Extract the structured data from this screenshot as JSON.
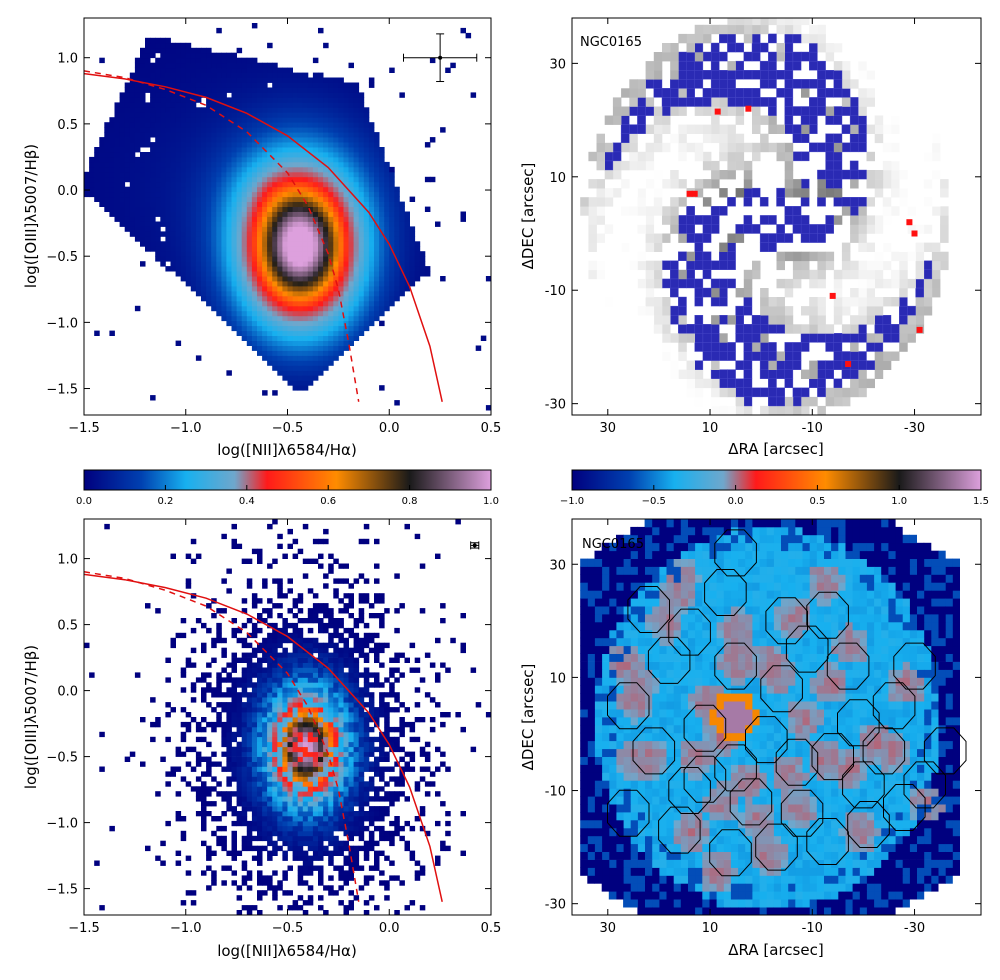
{
  "chart_data": [
    {
      "type": "heatmap",
      "panel": "top-left",
      "xlabel": "log([NII]λ6584/Hα)",
      "ylabel": "log([OIII]λ5007/Hβ)",
      "xlim": [
        -1.5,
        0.5
      ],
      "ylim": [
        -1.7,
        1.3
      ],
      "xticks": [
        "−1.5",
        "−1.0",
        "−0.5",
        "0.0",
        "0.5"
      ],
      "yticks": [
        "−1.5",
        "−1.0",
        "−0.5",
        "0.0",
        "0.5",
        "1.0"
      ],
      "density_peak": {
        "x": -0.45,
        "y": -0.45
      },
      "error_bar": {
        "x": 0.25,
        "y": 1.0,
        "xerr": 0.18,
        "yerr": 0.18
      },
      "curves": [
        {
          "style": "solid",
          "color": "#e01010",
          "points": [
            [
              -1.5,
              0.88
            ],
            [
              -1.3,
              0.84
            ],
            [
              -1.1,
              0.78
            ],
            [
              -0.9,
              0.7
            ],
            [
              -0.7,
              0.58
            ],
            [
              -0.5,
              0.41
            ],
            [
              -0.3,
              0.17
            ],
            [
              -0.1,
              -0.17
            ],
            [
              0.0,
              -0.41
            ],
            [
              0.1,
              -0.73
            ],
            [
              0.2,
              -1.18
            ],
            [
              0.26,
              -1.6
            ]
          ]
        },
        {
          "style": "dashed",
          "color": "#e01010",
          "points": [
            [
              -1.5,
              0.9
            ],
            [
              -1.3,
              0.85
            ],
            [
              -1.1,
              0.76
            ],
            [
              -0.9,
              0.64
            ],
            [
              -0.7,
              0.44
            ],
            [
              -0.5,
              0.13
            ],
            [
              -0.4,
              -0.12
            ],
            [
              -0.3,
              -0.48
            ],
            [
              -0.25,
              -0.75
            ],
            [
              -0.2,
              -1.15
            ],
            [
              -0.15,
              -1.6
            ]
          ]
        }
      ],
      "colorbar": {
        "min": 0.0,
        "max": 1.0,
        "ticks": [
          "0.0",
          "0.2",
          "0.4",
          "0.6",
          "0.8",
          "1.0"
        ]
      }
    },
    {
      "type": "heatmap",
      "panel": "top-right",
      "label": "NGC0165",
      "xlabel": "ΔRA [arcsec]",
      "ylabel": "ΔDEC [arcsec]",
      "xlim": [
        37,
        -43
      ],
      "ylim": [
        -32,
        38
      ],
      "xticks": [
        "30",
        "10",
        "-10",
        "-30"
      ],
      "yticks": [
        "30",
        "10",
        "-10",
        "-30"
      ],
      "grayscale_map": true,
      "overlay_color": "#2a2ab4",
      "red_markers": [
        [
          8.5,
          21.5
        ],
        [
          2.5,
          22
        ],
        [
          13,
          7
        ],
        [
          14,
          7
        ],
        [
          -29,
          2
        ],
        [
          -30,
          0
        ],
        [
          -14,
          -11
        ],
        [
          -17,
          -23
        ],
        [
          -31,
          -17
        ]
      ]
    },
    {
      "type": "heatmap",
      "panel": "bottom-left",
      "xlabel": "log([NII]λ6584/Hα)",
      "ylabel": "log([OIII]λ5007/Hβ)",
      "xlim": [
        -1.5,
        0.5
      ],
      "ylim": [
        -1.7,
        1.3
      ],
      "xticks": [
        "−1.5",
        "−1.0",
        "−0.5",
        "0.0",
        "0.5"
      ],
      "yticks": [
        "−1.5",
        "−1.0",
        "−0.5",
        "0.0",
        "0.5",
        "1.0"
      ],
      "density_peak": {
        "x": -0.42,
        "y": -0.45
      },
      "error_bar": {
        "x": 0.42,
        "y": 1.1,
        "xerr": 0.02,
        "yerr": 0.02
      },
      "curves": [
        {
          "style": "solid",
          "color": "#e01010",
          "points": [
            [
              -1.5,
              0.88
            ],
            [
              -1.3,
              0.84
            ],
            [
              -1.1,
              0.78
            ],
            [
              -0.9,
              0.7
            ],
            [
              -0.7,
              0.58
            ],
            [
              -0.5,
              0.41
            ],
            [
              -0.3,
              0.17
            ],
            [
              -0.1,
              -0.17
            ],
            [
              0.0,
              -0.41
            ],
            [
              0.1,
              -0.73
            ],
            [
              0.2,
              -1.18
            ],
            [
              0.26,
              -1.6
            ]
          ]
        },
        {
          "style": "dashed",
          "color": "#e01010",
          "points": [
            [
              -1.5,
              0.9
            ],
            [
              -1.3,
              0.85
            ],
            [
              -1.1,
              0.76
            ],
            [
              -0.9,
              0.64
            ],
            [
              -0.7,
              0.44
            ],
            [
              -0.5,
              0.13
            ],
            [
              -0.4,
              -0.12
            ],
            [
              -0.3,
              -0.48
            ],
            [
              -0.25,
              -0.75
            ],
            [
              -0.2,
              -1.15
            ],
            [
              -0.15,
              -1.6
            ]
          ]
        }
      ]
    },
    {
      "type": "heatmap",
      "panel": "bottom-right",
      "label": "NGC0165",
      "xlabel": "ΔRA [arcsec]",
      "ylabel": "ΔDEC [arcsec]",
      "xlim": [
        37,
        -43
      ],
      "ylim": [
        -32,
        38
      ],
      "xticks": [
        "30",
        "10",
        "-10",
        "-30"
      ],
      "yticks": [
        "30",
        "10",
        "-10",
        "-30"
      ],
      "colorbar": {
        "min": -1.0,
        "max": 1.5,
        "ticks": [
          "−1.0",
          "−0.5",
          "0.0",
          "0.5",
          "1.0",
          "1.5"
        ]
      },
      "hotspots": [
        [
          4,
          12
        ],
        [
          -2,
          12
        ],
        [
          18,
          19
        ],
        [
          16,
          24
        ],
        [
          23,
          8
        ],
        [
          21,
          -5
        ],
        [
          12,
          -5
        ],
        [
          7,
          -1
        ],
        [
          2,
          -9
        ],
        [
          -6,
          -8
        ],
        [
          -13,
          -5
        ],
        [
          -18,
          -7
        ],
        [
          -26,
          -4
        ],
        [
          -23,
          -2
        ],
        [
          -8,
          -14
        ],
        [
          13,
          -18
        ],
        [
          24,
          -5
        ],
        [
          7,
          -13
        ],
        [
          0,
          -16
        ],
        [
          -4,
          10
        ],
        [
          -14,
          8
        ],
        [
          -18,
          15
        ],
        [
          24,
          5
        ],
        [
          26,
          12
        ],
        [
          10,
          5
        ],
        [
          -9,
          2
        ],
        [
          -2,
          -22
        ],
        [
          -20,
          -18
        ],
        [
          -33,
          -13
        ],
        [
          8,
          -25
        ],
        [
          15,
          27
        ],
        [
          4,
          18
        ],
        [
          -7,
          20
        ],
        [
          -13,
          26
        ],
        [
          -29,
          8
        ]
      ],
      "region_outlines": [
        [
          -9,
          15
        ],
        [
          -4,
          8
        ],
        [
          5,
          12
        ],
        [
          14,
          18
        ],
        [
          22,
          22
        ],
        [
          18,
          13
        ],
        [
          26,
          5
        ],
        [
          21,
          -3
        ],
        [
          11,
          -8
        ],
        [
          2,
          -12
        ],
        [
          -7,
          -5
        ],
        [
          -14,
          -4
        ],
        [
          -20,
          -9
        ],
        [
          -24,
          -3
        ],
        [
          -26,
          5
        ],
        [
          -17,
          12
        ],
        [
          -13,
          21
        ],
        [
          -5,
          20
        ],
        [
          7,
          25
        ],
        [
          26,
          -14
        ],
        [
          16,
          -17
        ],
        [
          6,
          -21
        ],
        [
          -3,
          -20
        ],
        [
          -13,
          -19
        ],
        [
          -21,
          -16
        ],
        [
          -32,
          -9
        ],
        [
          -36,
          -3
        ],
        [
          -8,
          -14
        ],
        [
          -28,
          -13
        ],
        [
          5,
          -6
        ],
        [
          11,
          1
        ],
        [
          -1,
          -1
        ],
        [
          -19,
          2
        ],
        [
          -30,
          12
        ],
        [
          14,
          -10
        ],
        [
          5,
          32
        ]
      ]
    }
  ],
  "panels": {
    "tl": {
      "xlabel": "log([NII]λ6584/Hα)",
      "ylabel": "log([OIII]λ5007/Hβ)",
      "xticks": [
        "−1.5",
        "−1.0",
        "−0.5",
        "0.0",
        "0.5"
      ],
      "yticks": [
        "−1.5",
        "−1.0",
        "−0.5",
        "0.0",
        "0.5",
        "1.0"
      ]
    },
    "tr": {
      "label": "NGC0165",
      "xlabel": "ΔRA [arcsec]",
      "ylabel": "ΔDEC [arcsec]",
      "xticks": [
        "30",
        "10",
        "-10",
        "-30"
      ],
      "yticks": [
        "30",
        "10",
        "-10",
        "-30"
      ]
    },
    "bl": {
      "xlabel": "log([NII]λ6584/Hα)",
      "ylabel": "log([OIII]λ5007/Hβ)",
      "xticks": [
        "−1.5",
        "−1.0",
        "−0.5",
        "0.0",
        "0.5"
      ],
      "yticks": [
        "−1.5",
        "−1.0",
        "−0.5",
        "0.0",
        "0.5",
        "1.0"
      ]
    },
    "br": {
      "label": "NGC0165",
      "xlabel": "ΔRA [arcsec]",
      "ylabel": "ΔDEC [arcsec]",
      "xticks": [
        "30",
        "10",
        "-10",
        "-30"
      ],
      "yticks": [
        "30",
        "10",
        "-10",
        "-30"
      ]
    }
  },
  "colorbars": {
    "left": {
      "ticks": [
        "0.0",
        "0.2",
        "0.4",
        "0.6",
        "0.8",
        "1.0"
      ]
    },
    "right": {
      "ticks": [
        "−1.0",
        "−0.5",
        "0.0",
        "0.5",
        "1.0",
        "1.5"
      ]
    }
  },
  "colors": {
    "colormap": [
      "#00007f",
      "#0040b0",
      "#17b0ef",
      "#6fa7cc",
      "#ff1a1a",
      "#ff8c00",
      "#1a1a1a",
      "#dda0dd"
    ],
    "bpt_line": "#e01010",
    "overlay_blue": "#2a2ab4",
    "marker_red": "#ff1010"
  }
}
